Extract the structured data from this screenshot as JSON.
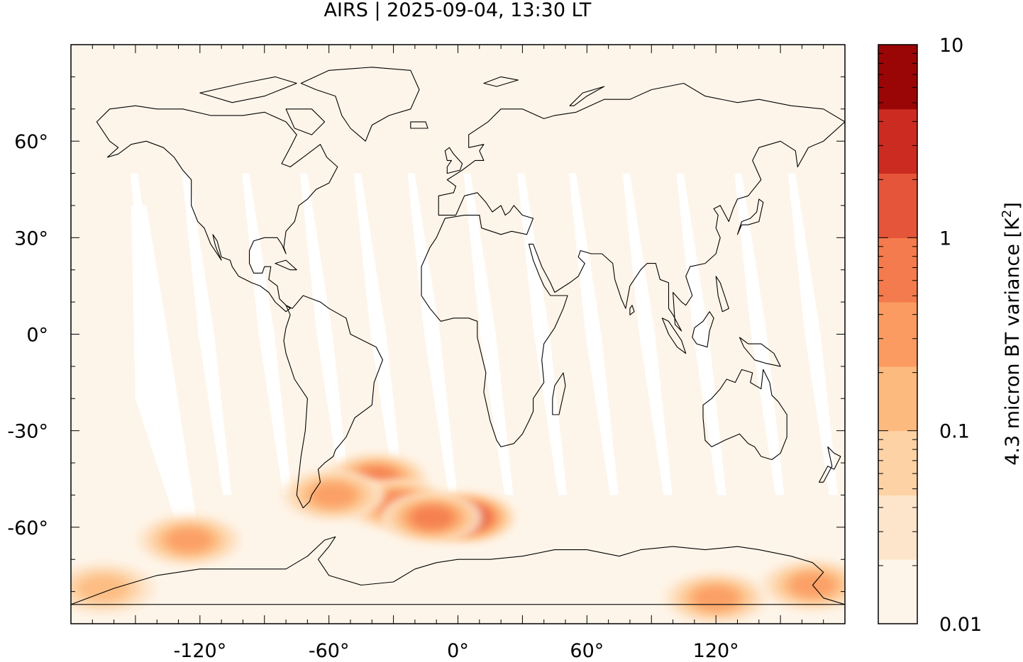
{
  "title": "AIRS | 2025-09-04, 13:30 LT",
  "map": {
    "projection": "equirectangular",
    "lon_range": [
      -180,
      180
    ],
    "lat_range": [
      -90,
      90
    ],
    "lon_ticks": [
      {
        "value": -120,
        "label": "-120°"
      },
      {
        "value": -60,
        "label": "-60°"
      },
      {
        "value": 0,
        "label": "0°"
      },
      {
        "value": 60,
        "label": "60°"
      },
      {
        "value": 120,
        "label": "120°"
      }
    ],
    "lat_ticks": [
      {
        "value": 60,
        "label": "60°"
      },
      {
        "value": 30,
        "label": "30°"
      },
      {
        "value": 0,
        "label": "0°"
      },
      {
        "value": -30,
        "label": "-30°"
      },
      {
        "value": -60,
        "label": "-60°"
      }
    ],
    "background_color": "#fef5ea",
    "gap_color": "#ffffff",
    "coastline_color": "#000000",
    "orbit_gap_lons_at_equator": [
      -141,
      -117,
      -89,
      -62,
      -37,
      -12,
      14,
      39,
      63,
      88,
      113,
      140,
      165
    ],
    "variance_hotspots": [
      {
        "lon": 3,
        "lat": -57,
        "level": 4.0
      },
      {
        "lon": -38,
        "lat": -45,
        "level": 1.2
      },
      {
        "lon": -28,
        "lat": -53,
        "level": 1.5
      },
      {
        "lon": -12,
        "lat": -57,
        "level": 1.0
      },
      {
        "lon": -58,
        "lat": -50,
        "level": 0.6
      },
      {
        "lon": -125,
        "lat": -64,
        "level": 0.6
      },
      {
        "lon": 120,
        "lat": -82,
        "level": 0.4
      },
      {
        "lon": 165,
        "lat": -78,
        "level": 0.5
      },
      {
        "lon": -165,
        "lat": -79,
        "level": 0.2
      }
    ]
  },
  "colorbar": {
    "label": "4.3 micron BT variance [K²]",
    "label_main": "4.3 micron BT variance [K",
    "label_sup": "2",
    "label_end": "]",
    "scale": "log",
    "range": [
      0.01,
      10
    ],
    "tick_labels": [
      {
        "value": 10,
        "label": "10"
      },
      {
        "value": 1,
        "label": "1"
      },
      {
        "value": 0.1,
        "label": "0.1"
      },
      {
        "value": 0.01,
        "label": "0.01"
      }
    ],
    "colors": [
      "#fef5ea",
      "#fde5cb",
      "#fdd2a5",
      "#fdba7e",
      "#fb9b62",
      "#f47b4d",
      "#e4553a",
      "#cb2b20",
      "#9a0505"
    ]
  }
}
